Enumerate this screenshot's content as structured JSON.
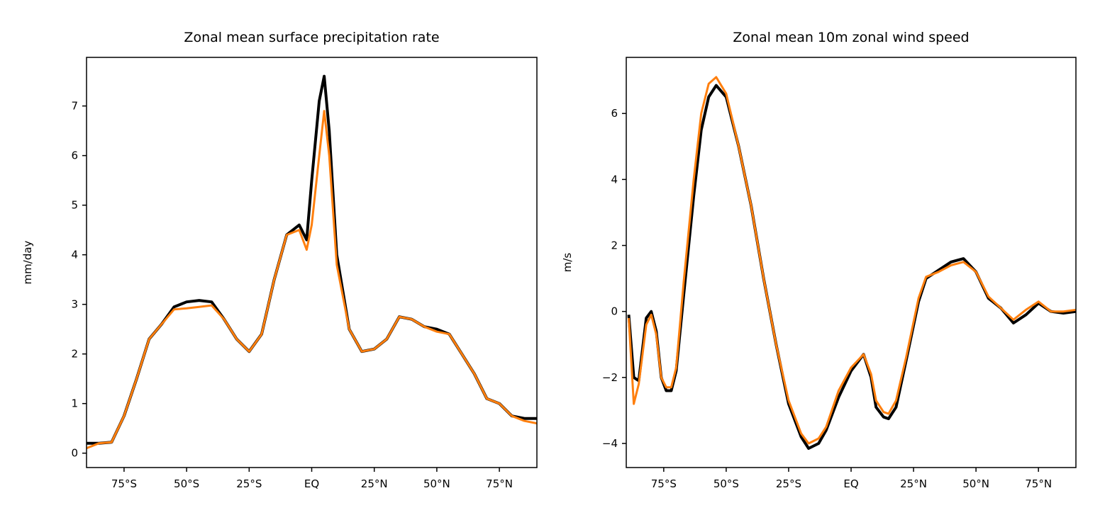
{
  "chart_data": [
    {
      "type": "line",
      "title": "Zonal mean surface precipitation rate",
      "ylabel": "mm/day",
      "x": [
        -90,
        -85,
        -80,
        -75,
        -70,
        -65,
        -60,
        -55,
        -50,
        -45,
        -40,
        -35,
        -30,
        -25,
        -20,
        -15,
        -10,
        -5,
        -2,
        0,
        3,
        5,
        7,
        10,
        15,
        20,
        25,
        30,
        35,
        40,
        45,
        50,
        55,
        60,
        65,
        70,
        75,
        80,
        85,
        90
      ],
      "series": [
        {
          "color": "#000000",
          "values": [
            0.2,
            0.2,
            0.22,
            0.75,
            1.5,
            2.3,
            2.6,
            2.95,
            3.05,
            3.08,
            3.05,
            2.7,
            2.3,
            2.05,
            2.4,
            3.5,
            4.4,
            4.6,
            4.3,
            5.5,
            7.1,
            7.6,
            6.5,
            4.0,
            2.5,
            2.05,
            2.1,
            2.3,
            2.75,
            2.7,
            2.55,
            2.5,
            2.4,
            2.0,
            1.6,
            1.1,
            1.0,
            0.75,
            0.7,
            0.7
          ]
        },
        {
          "color": "#ff7f0e",
          "values": [
            0.1,
            0.2,
            0.22,
            0.75,
            1.5,
            2.3,
            2.6,
            2.9,
            2.92,
            2.95,
            2.98,
            2.7,
            2.3,
            2.05,
            2.4,
            3.5,
            4.4,
            4.5,
            4.1,
            4.6,
            6.0,
            6.9,
            6.0,
            3.8,
            2.5,
            2.05,
            2.1,
            2.3,
            2.75,
            2.7,
            2.55,
            2.45,
            2.4,
            2.0,
            1.6,
            1.1,
            1.0,
            0.75,
            0.65,
            0.6
          ]
        }
      ],
      "xlim": [
        -90,
        90
      ],
      "xticks": [
        {
          "value": -75,
          "label": "75°S"
        },
        {
          "value": -50,
          "label": "50°S"
        },
        {
          "value": -25,
          "label": "25°S"
        },
        {
          "value": 0,
          "label": "EQ"
        },
        {
          "value": 25,
          "label": "25°N"
        },
        {
          "value": 50,
          "label": "50°N"
        },
        {
          "value": 75,
          "label": "75°N"
        }
      ],
      "ylim": [
        -0.29,
        7.98
      ],
      "yticks": [
        0,
        1,
        2,
        3,
        4,
        5,
        6,
        7
      ]
    },
    {
      "type": "line",
      "title": "Zonal mean 10m zonal wind speed",
      "ylabel": "m/s",
      "x": [
        -89,
        -87,
        -85,
        -82,
        -80,
        -78,
        -76,
        -74,
        -72,
        -70,
        -67,
        -63,
        -60,
        -57,
        -54,
        -50,
        -45,
        -40,
        -35,
        -30,
        -25,
        -20,
        -17,
        -13,
        -10,
        -5,
        0,
        5,
        8,
        10,
        13,
        15,
        18,
        22,
        27,
        30,
        35,
        40,
        45,
        50,
        55,
        60,
        65,
        70,
        75,
        80,
        85,
        90
      ],
      "series": [
        {
          "color": "#000000",
          "values": [
            -0.1,
            -2.0,
            -2.1,
            -0.2,
            0.0,
            -0.6,
            -2.0,
            -2.4,
            -2.4,
            -1.8,
            0.5,
            3.5,
            5.5,
            6.5,
            6.85,
            6.5,
            5.0,
            3.2,
            1.0,
            -1.0,
            -2.8,
            -3.8,
            -4.15,
            -4.0,
            -3.6,
            -2.6,
            -1.8,
            -1.3,
            -2.0,
            -2.9,
            -3.2,
            -3.25,
            -2.9,
            -1.5,
            0.3,
            1.0,
            1.25,
            1.5,
            1.6,
            1.2,
            0.4,
            0.1,
            -0.35,
            -0.1,
            0.25,
            0.0,
            -0.05,
            0.0
          ]
        },
        {
          "color": "#ff7f0e",
          "values": [
            -0.2,
            -2.8,
            -2.2,
            -0.4,
            -0.1,
            -0.7,
            -2.0,
            -2.3,
            -2.3,
            -1.7,
            0.9,
            4.0,
            6.0,
            6.9,
            7.1,
            6.6,
            5.0,
            3.2,
            1.0,
            -1.0,
            -2.7,
            -3.7,
            -4.0,
            -3.85,
            -3.5,
            -2.4,
            -1.7,
            -1.3,
            -1.9,
            -2.7,
            -3.05,
            -3.1,
            -2.7,
            -1.4,
            0.4,
            1.05,
            1.2,
            1.4,
            1.5,
            1.2,
            0.45,
            0.1,
            -0.25,
            0.05,
            0.3,
            0.0,
            0.0,
            0.05
          ]
        }
      ],
      "xlim": [
        -90,
        90
      ],
      "xticks": [
        {
          "value": -75,
          "label": "75°S"
        },
        {
          "value": -50,
          "label": "50°S"
        },
        {
          "value": -25,
          "label": "25°S"
        },
        {
          "value": 0,
          "label": "EQ"
        },
        {
          "value": 25,
          "label": "25°N"
        },
        {
          "value": 50,
          "label": "50°N"
        },
        {
          "value": 75,
          "label": "75°N"
        }
      ],
      "ylim": [
        -4.73,
        7.7
      ],
      "yticks": [
        {
          "value": -4,
          "label": "−4"
        },
        {
          "value": -2,
          "label": "−2"
        },
        0,
        2,
        4,
        6
      ]
    }
  ]
}
